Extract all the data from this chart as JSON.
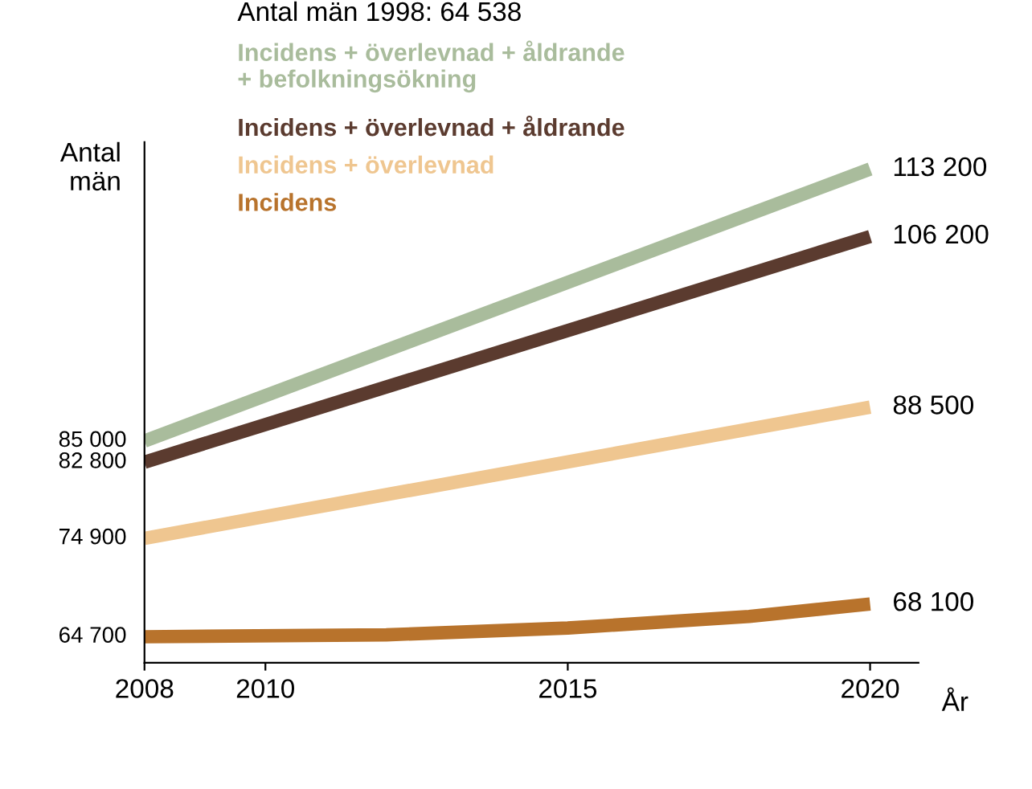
{
  "chart_data": {
    "type": "line",
    "title": "Antal män 1998: 64 538",
    "ylabel": "Antal\nmän",
    "xlabel": "År",
    "x": [
      2008,
      2020
    ],
    "xlim": [
      2008,
      2020.8
    ],
    "xticks": [
      2008,
      2010,
      2015,
      2020
    ],
    "ylim": [
      62000,
      116000
    ],
    "tick_labels": "x",
    "legend": "top left",
    "grid": false,
    "series": [
      {
        "name": "Incidens + överlevnad + åldrande\n+ befolkningsökning",
        "color": "#a9bc9c",
        "values": [
          85000,
          113200
        ],
        "value_labels": [
          "85 000",
          "113 200"
        ]
      },
      {
        "name": "Incidens + överlevnad + åldrande",
        "color": "#5b3b2f",
        "values": [
          82800,
          106200
        ],
        "value_labels": [
          "82 800",
          "106 200"
        ]
      },
      {
        "name": "Incidens + överlevnad",
        "color": "#efc690",
        "values": [
          74900,
          88500
        ],
        "value_labels": [
          "74 900",
          "88 500"
        ]
      },
      {
        "name": "Incidens",
        "color": "#b8732c",
        "x": [
          2008,
          2012,
          2015,
          2018,
          2020
        ],
        "values": [
          64700,
          64900,
          65600,
          66800,
          68100
        ],
        "value_labels": [
          "64 700",
          null,
          null,
          null,
          "68 100"
        ]
      }
    ]
  }
}
